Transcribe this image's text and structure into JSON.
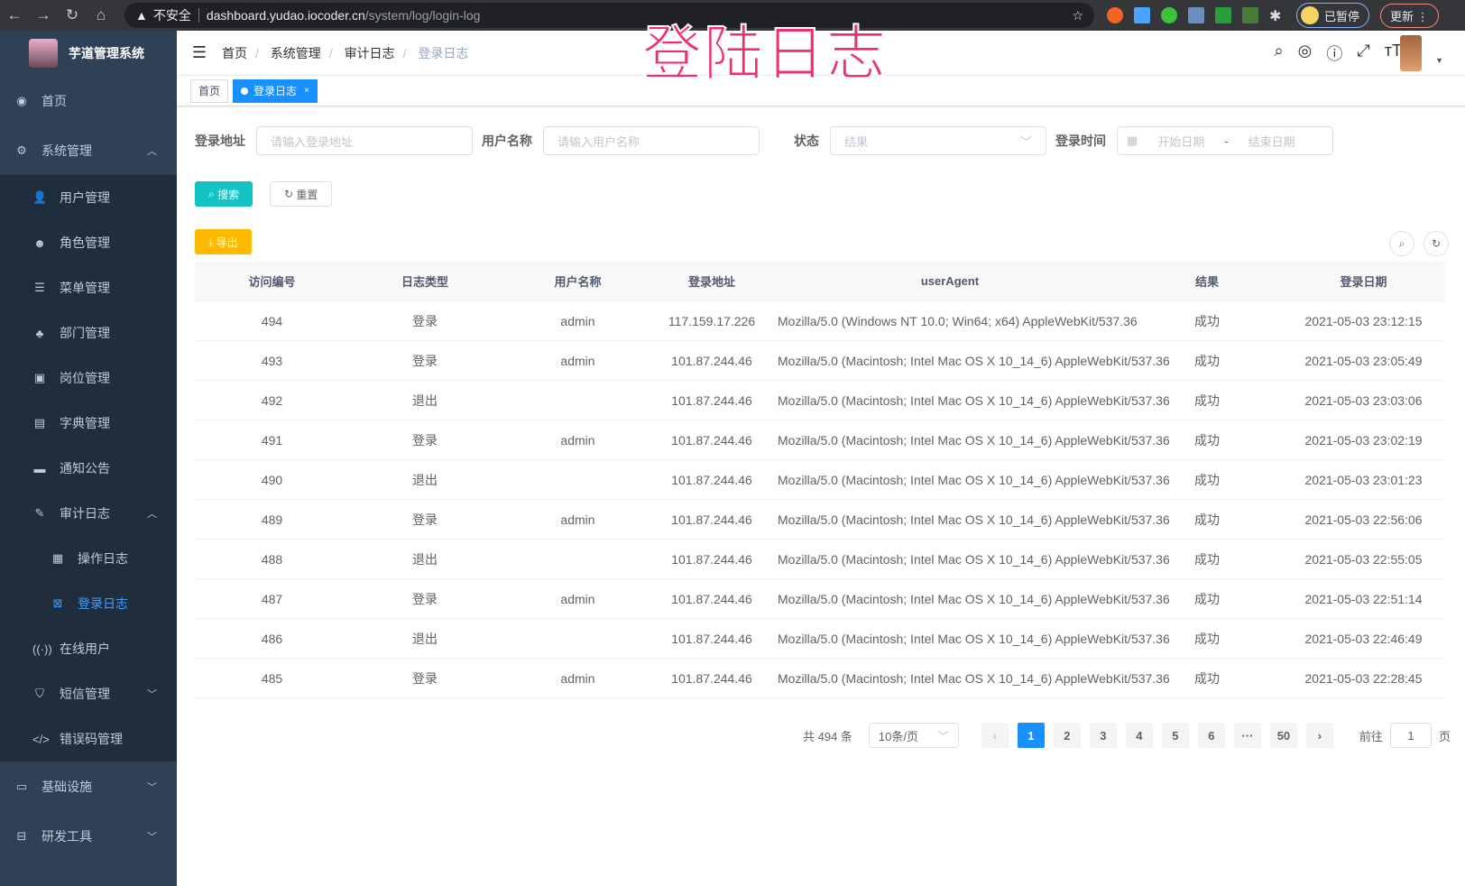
{
  "browser": {
    "security": "不安全",
    "url_host": "dashboard.yudao.iocoder.cn",
    "url_path": "/system/log/login-log",
    "paused": "已暂停",
    "update": "更新"
  },
  "banner": "登陆日志",
  "app": {
    "title": "芋道管理系统"
  },
  "sidebar": {
    "items": [
      {
        "label": "首页",
        "icon": "dashboard-icon"
      },
      {
        "label": "系统管理",
        "icon": "gear-icon",
        "expanded": true,
        "children": [
          {
            "label": "用户管理",
            "icon": "user-icon"
          },
          {
            "label": "角色管理",
            "icon": "peoples-icon"
          },
          {
            "label": "菜单管理",
            "icon": "tree-table-icon"
          },
          {
            "label": "部门管理",
            "icon": "tree-icon"
          },
          {
            "label": "岗位管理",
            "icon": "post-icon"
          },
          {
            "label": "字典管理",
            "icon": "dict-icon"
          },
          {
            "label": "通知公告",
            "icon": "message-icon"
          },
          {
            "label": "审计日志",
            "icon": "log-icon",
            "expanded": true,
            "children": [
              {
                "label": "操作日志",
                "icon": "form-icon"
              },
              {
                "label": "登录日志",
                "icon": "logininfor-icon",
                "active": true
              }
            ]
          },
          {
            "label": "在线用户",
            "icon": "online-icon"
          },
          {
            "label": "短信管理",
            "icon": "validcode-icon"
          },
          {
            "label": "错误码管理",
            "icon": "code-icon"
          }
        ]
      },
      {
        "label": "基础设施",
        "icon": "monitor-icon"
      },
      {
        "label": "研发工具",
        "icon": "tool-icon"
      }
    ]
  },
  "breadcrumb": [
    "首页",
    "系统管理",
    "审计日志",
    "登录日志"
  ],
  "tags": [
    {
      "label": "首页"
    },
    {
      "label": "登录日志",
      "active": true
    }
  ],
  "filters": {
    "address": {
      "label": "登录地址",
      "placeholder": "请输入登录地址"
    },
    "username": {
      "label": "用户名称",
      "placeholder": "请输入用户名称"
    },
    "status": {
      "label": "状态",
      "placeholder": "结果"
    },
    "time": {
      "label": "登录时间",
      "start": "开始日期",
      "sep": "-",
      "end": "结束日期"
    }
  },
  "buttons": {
    "search": "搜索",
    "reset": "重置",
    "export": "导出"
  },
  "colors": {
    "sidebar": "#304156",
    "primary": "#1890ff",
    "search": "#13c2c2",
    "export": "#ffba00"
  },
  "table": {
    "columns": [
      "访问编号",
      "日志类型",
      "用户名称",
      "登录地址",
      "userAgent",
      "结果",
      "登录日期"
    ],
    "rows": [
      [
        "494",
        "登录",
        "admin",
        "117.159.17.226",
        "Mozilla/5.0 (Windows NT 10.0; Win64; x64) AppleWebKit/537.36",
        "成功",
        "2021-05-03 23:12:15"
      ],
      [
        "493",
        "登录",
        "admin",
        "101.87.244.46",
        "Mozilla/5.0 (Macintosh; Intel Mac OS X 10_14_6) AppleWebKit/537.36",
        "成功",
        "2021-05-03 23:05:49"
      ],
      [
        "492",
        "退出",
        "",
        "101.87.244.46",
        "Mozilla/5.0 (Macintosh; Intel Mac OS X 10_14_6) AppleWebKit/537.36",
        "成功",
        "2021-05-03 23:03:06"
      ],
      [
        "491",
        "登录",
        "admin",
        "101.87.244.46",
        "Mozilla/5.0 (Macintosh; Intel Mac OS X 10_14_6) AppleWebKit/537.36",
        "成功",
        "2021-05-03 23:02:19"
      ],
      [
        "490",
        "退出",
        "",
        "101.87.244.46",
        "Mozilla/5.0 (Macintosh; Intel Mac OS X 10_14_6) AppleWebKit/537.36",
        "成功",
        "2021-05-03 23:01:23"
      ],
      [
        "489",
        "登录",
        "admin",
        "101.87.244.46",
        "Mozilla/5.0 (Macintosh; Intel Mac OS X 10_14_6) AppleWebKit/537.36",
        "成功",
        "2021-05-03 22:56:06"
      ],
      [
        "488",
        "退出",
        "",
        "101.87.244.46",
        "Mozilla/5.0 (Macintosh; Intel Mac OS X 10_14_6) AppleWebKit/537.36",
        "成功",
        "2021-05-03 22:55:05"
      ],
      [
        "487",
        "登录",
        "admin",
        "101.87.244.46",
        "Mozilla/5.0 (Macintosh; Intel Mac OS X 10_14_6) AppleWebKit/537.36",
        "成功",
        "2021-05-03 22:51:14"
      ],
      [
        "486",
        "退出",
        "",
        "101.87.244.46",
        "Mozilla/5.0 (Macintosh; Intel Mac OS X 10_14_6) AppleWebKit/537.36",
        "成功",
        "2021-05-03 22:46:49"
      ],
      [
        "485",
        "登录",
        "admin",
        "101.87.244.46",
        "Mozilla/5.0 (Macintosh; Intel Mac OS X 10_14_6) AppleWebKit/537.36",
        "成功",
        "2021-05-03 22:28:45"
      ]
    ]
  },
  "pagination": {
    "total": "共 494 条",
    "page_size": "10条/页",
    "pages": [
      "1",
      "2",
      "3",
      "4",
      "5",
      "6",
      "···",
      "50"
    ],
    "current": "1",
    "goto_label": "前往",
    "goto_value": "1",
    "goto_suffix": "页"
  }
}
